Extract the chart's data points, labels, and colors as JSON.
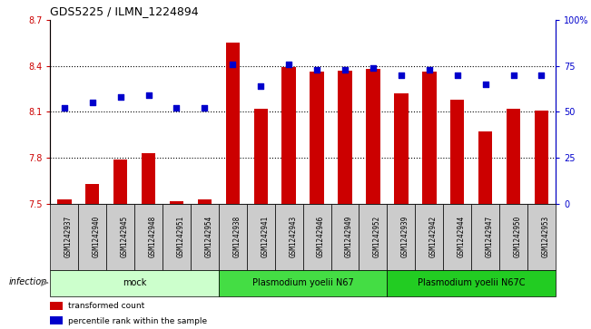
{
  "title": "GDS5225 / ILMN_1224894",
  "samples": [
    "GSM1242937",
    "GSM1242940",
    "GSM1242945",
    "GSM1242948",
    "GSM1242951",
    "GSM1242954",
    "GSM1242938",
    "GSM1242941",
    "GSM1242943",
    "GSM1242946",
    "GSM1242949",
    "GSM1242952",
    "GSM1242939",
    "GSM1242942",
    "GSM1242944",
    "GSM1242947",
    "GSM1242950",
    "GSM1242953"
  ],
  "bar_values": [
    7.53,
    7.63,
    7.79,
    7.83,
    7.52,
    7.53,
    8.55,
    8.12,
    8.39,
    8.36,
    8.37,
    8.38,
    8.22,
    8.36,
    8.18,
    7.97,
    8.12,
    8.11
  ],
  "percentile_values": [
    52,
    55,
    58,
    59,
    52,
    52,
    76,
    64,
    76,
    73,
    73,
    74,
    70,
    73,
    70,
    65,
    70,
    70
  ],
  "bar_bottom": 7.5,
  "ylim_left": [
    7.5,
    8.7
  ],
  "ylim_right": [
    0,
    100
  ],
  "yticks_left": [
    7.5,
    7.8,
    8.1,
    8.4,
    8.7
  ],
  "yticks_right": [
    0,
    25,
    50,
    75,
    100
  ],
  "ytick_labels_right": [
    "0",
    "25",
    "50",
    "75",
    "100%"
  ],
  "grid_lines": [
    7.8,
    8.1,
    8.4
  ],
  "groups": [
    {
      "label": "mock",
      "start": 0,
      "end": 6,
      "color": "#ccffcc"
    },
    {
      "label": "Plasmodium yoelii N67",
      "start": 6,
      "end": 12,
      "color": "#44dd44"
    },
    {
      "label": "Plasmodium yoelii N67C",
      "start": 12,
      "end": 18,
      "color": "#22cc22"
    }
  ],
  "infection_label": "infection",
  "bar_color": "#cc0000",
  "dot_color": "#0000cc",
  "sample_bg_color": "#cccccc",
  "legend_items": [
    {
      "label": "transformed count",
      "color": "#cc0000"
    },
    {
      "label": "percentile rank within the sample",
      "color": "#0000cc"
    }
  ]
}
